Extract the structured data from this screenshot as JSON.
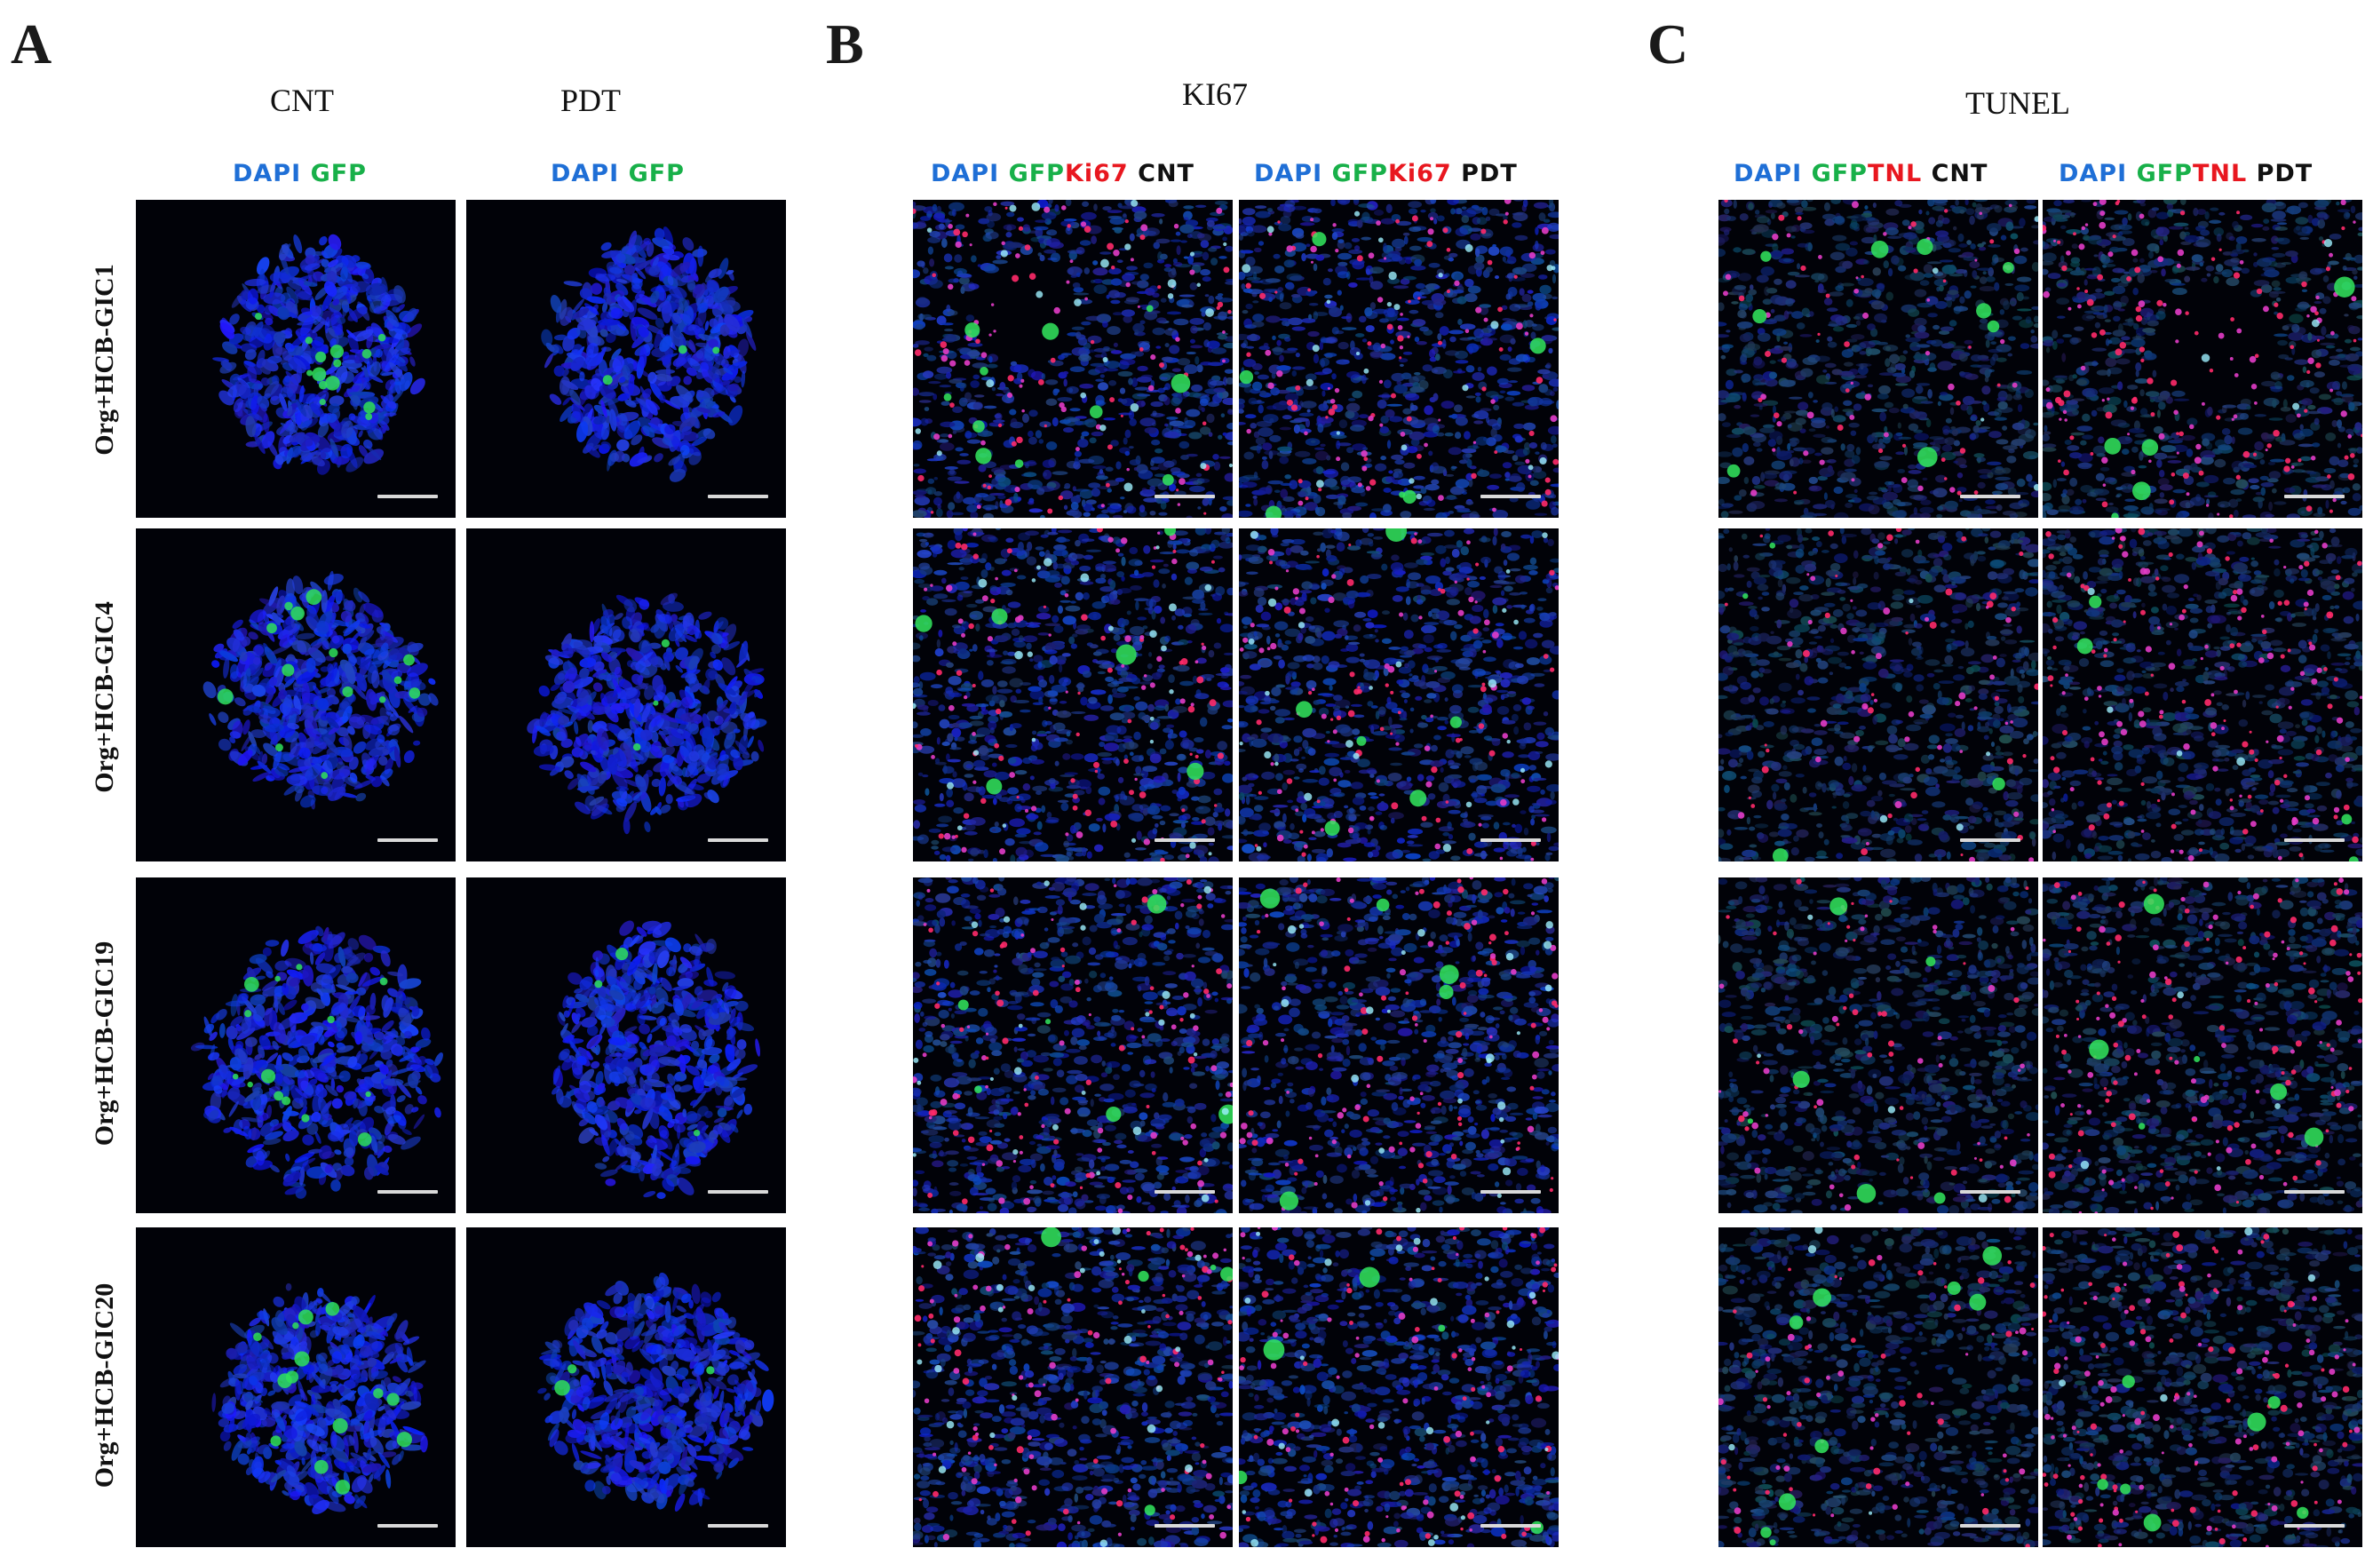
{
  "panels": {
    "A": {
      "letter": "A",
      "columns": [
        {
          "title": "CNT",
          "stains": [
            {
              "text": "DAPI",
              "color": "#1f6fd6"
            },
            {
              "text": "GFP",
              "color": "#18b049"
            }
          ]
        },
        {
          "title": "PDT",
          "stains": [
            {
              "text": "DAPI",
              "color": "#1f6fd6"
            },
            {
              "text": "GFP",
              "color": "#18b049"
            }
          ]
        }
      ],
      "rows": [
        "Org+HCB-GIC1",
        "Org+HCB-GIC4",
        "Org+HCB-GIC19",
        "Org+HCB-GIC20"
      ]
    },
    "B": {
      "letter": "B",
      "title": "KI67",
      "columns": [
        {
          "stains": [
            {
              "text": "DAPI",
              "color": "#1f6fd6"
            },
            {
              "text": "GFP",
              "color": "#18b049"
            },
            {
              "text": "Ki67",
              "color": "#e8171f"
            },
            {
              "text": "CNT",
              "color": "#111111"
            }
          ]
        },
        {
          "stains": [
            {
              "text": "DAPI",
              "color": "#1f6fd6"
            },
            {
              "text": "GFP",
              "color": "#18b049"
            },
            {
              "text": "Ki67",
              "color": "#e8171f"
            },
            {
              "text": "PDT",
              "color": "#111111"
            }
          ]
        }
      ]
    },
    "C": {
      "letter": "C",
      "title": "TUNEL",
      "columns": [
        {
          "stains": [
            {
              "text": "DAPI",
              "color": "#1f6fd6"
            },
            {
              "text": "GFP",
              "color": "#18b049"
            },
            {
              "text": "TNL",
              "color": "#e8171f"
            },
            {
              "text": "CNT",
              "color": "#111111"
            }
          ]
        },
        {
          "stains": [
            {
              "text": "DAPI",
              "color": "#1f6fd6"
            },
            {
              "text": "GFP",
              "color": "#18b049"
            },
            {
              "text": "TNL",
              "color": "#e8171f"
            },
            {
              "text": "PDT",
              "color": "#111111"
            }
          ]
        }
      ]
    }
  },
  "colors": {
    "dapi": "#1f6fd6",
    "gfp": "#18b049",
    "marker": "#e8171f",
    "tile_background": "#010208",
    "scale_bar": "#d9d9d9"
  }
}
